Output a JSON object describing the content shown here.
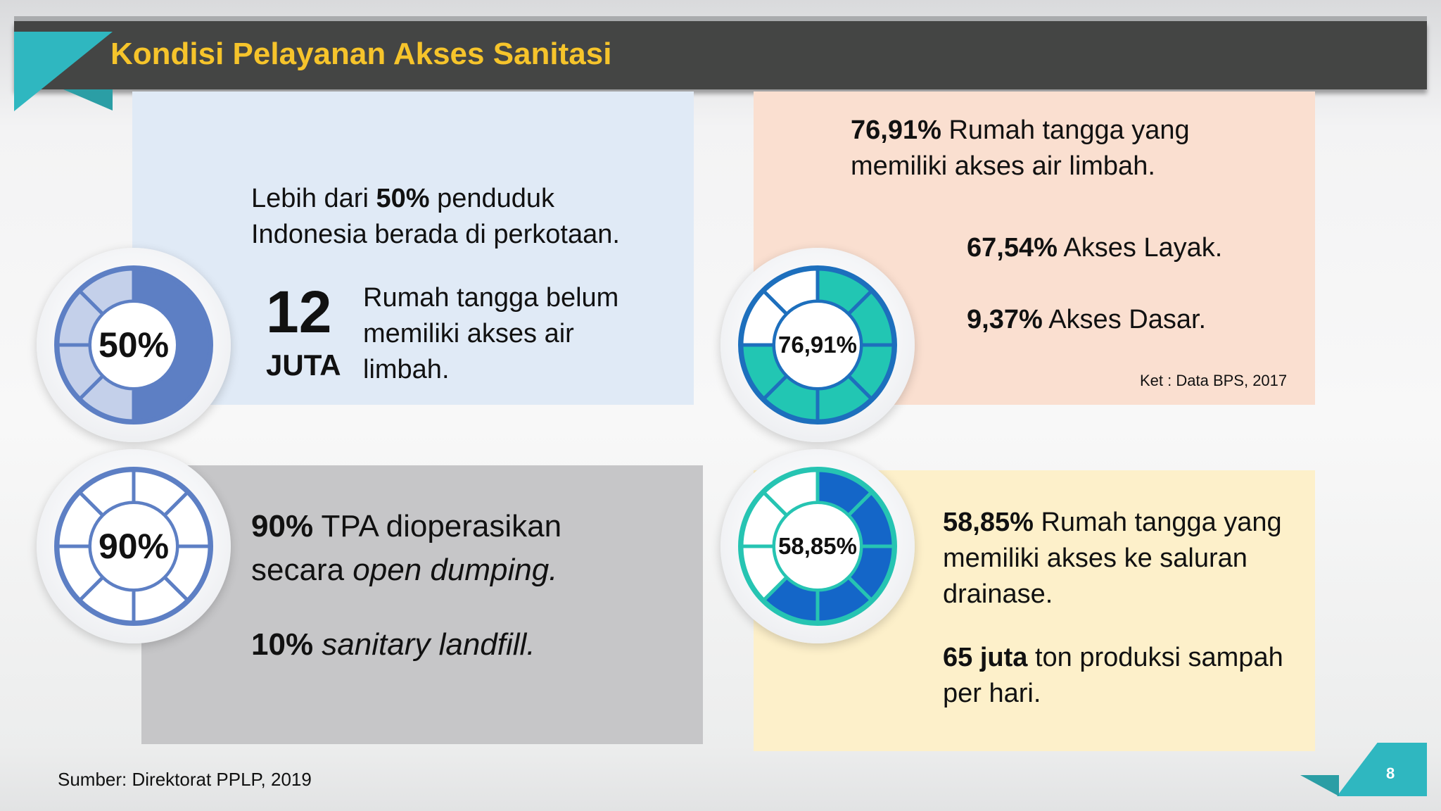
{
  "header": {
    "title": "Kondisi Pelayanan Akses Sanitasi"
  },
  "panel_urban": {
    "line1_pre": "Lebih dari ",
    "line1_bold": "50%",
    "line1_post": " penduduk",
    "line2": "Indonesia berada di perkotaan.",
    "big_number": "12",
    "big_unit": "JUTA",
    "desc_lines": [
      "Rumah tangga belum",
      "memiliki akses air",
      "limbah."
    ]
  },
  "panel_tpa": {
    "l1_bold": "90%",
    "l1_rest": " TPA dioperasikan",
    "l2_pre": "secara ",
    "l2_italic": "open dumping.",
    "l3_bold": "10%",
    "l3_italic": " sanitary landfill."
  },
  "panel_wastewater": {
    "l1_bold": "76,91%",
    "l1_rest": " Rumah tangga yang",
    "l2": "memiliki akses air limbah.",
    "layak_bold": "67,54%",
    "layak_rest": " Akses Layak.",
    "dasar_bold": "9,37%",
    "dasar_rest": " Akses Dasar.",
    "note": "Ket : Data BPS, 2017"
  },
  "panel_drainage": {
    "l1_bold": "58,85%",
    "l1_rest": " Rumah tangga yang",
    "l2": "memiliki akses ke saluran",
    "l3": "drainase.",
    "waste_bold": "65 juta",
    "waste_rest": " ton produksi sampah",
    "waste_l2": "per hari."
  },
  "gauges": [
    {
      "label": "50%",
      "value": 50,
      "fill_color": "#5d7fc4",
      "ring_color": "#c4d0ea",
      "outline": "#5d7fc4"
    },
    {
      "label": "90%",
      "value": 90,
      "fill_color": "#ffffff",
      "ring_color": "#ffffff",
      "outline": "#5d7fc4"
    },
    {
      "label": "76,91%",
      "value": 76.91,
      "fill_color": "#22c6b3",
      "ring_color": "#ffffff",
      "outline": "#1d6fbd"
    },
    {
      "label": "58,85%",
      "value": 58.85,
      "fill_color": "#1466c8",
      "ring_color": "#ffffff",
      "outline": "#26c4b2"
    }
  ],
  "footer": {
    "source": "Sumber: Direktorat PPLP, 2019",
    "page": "8"
  },
  "colors": {
    "header_bg": "#444544",
    "title": "#f6c42b",
    "teal": "#2fb7c0"
  }
}
